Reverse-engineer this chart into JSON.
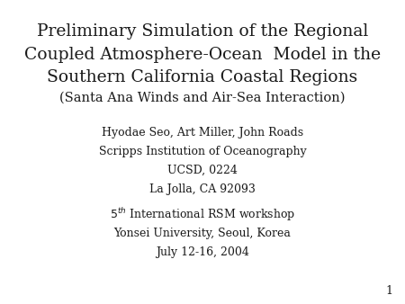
{
  "background_color": "#ffffff",
  "title_line1": "Preliminary Simulation of the Regional",
  "title_line2": "Coupled Atmosphere-Ocean  Model in the",
  "title_line3": "Southern California Coastal Regions",
  "subtitle": "(Santa Ana Winds and Air-Sea Interaction)",
  "author_line1": "Hyodae Seo, Art Miller, John Roads",
  "author_line2": "Scripps Institution of Oceanography",
  "author_line3": "UCSD, 0224",
  "author_line4": "La Jolla, CA 92093",
  "workshop_line2": "Yonsei University, Seoul, Korea",
  "workshop_line3": "July 12-16, 2004",
  "page_number": "1",
  "text_color": "#1a1a1a",
  "title_fontsize": 13.5,
  "subtitle_fontsize": 10.5,
  "author_fontsize": 9,
  "workshop_fontsize": 9,
  "page_fontsize": 9
}
